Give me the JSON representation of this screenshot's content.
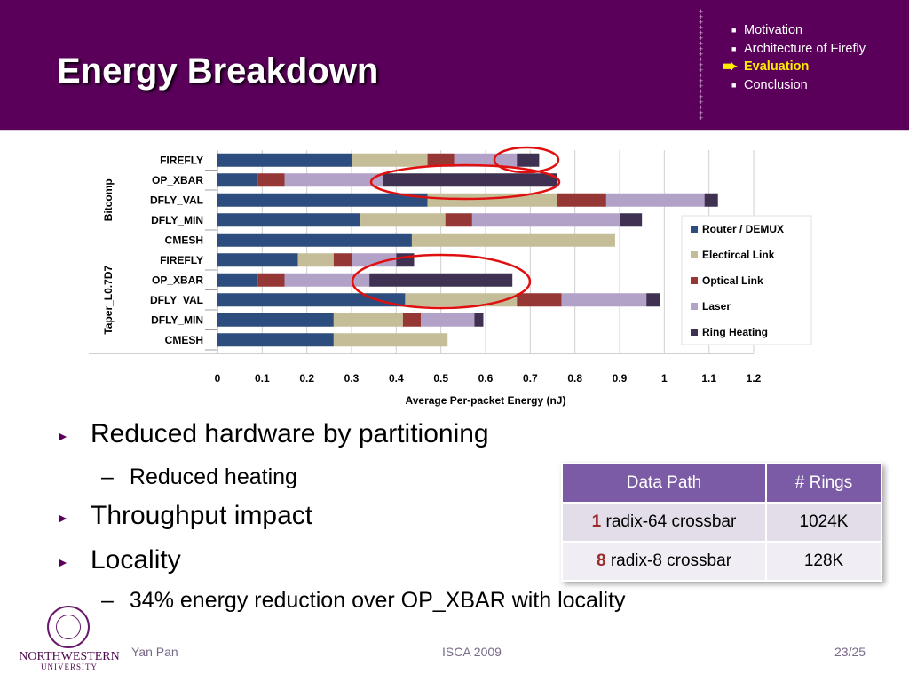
{
  "slide": {
    "title": "Energy Breakdown",
    "nav": [
      {
        "label": "Motivation",
        "active": false
      },
      {
        "label": "Architecture of Firefly",
        "active": false
      },
      {
        "label": "Evaluation",
        "active": true
      },
      {
        "label": "Conclusion",
        "active": false
      }
    ]
  },
  "chart_data": {
    "type": "bar",
    "orientation": "horizontal",
    "stacked": true,
    "xlabel": "Average Per-packet Energy (nJ)",
    "xlim": [
      0,
      1.2
    ],
    "xticks": [
      "0",
      "0.1",
      "0.2",
      "0.3",
      "0.4",
      "0.5",
      "0.6",
      "0.7",
      "0.8",
      "0.9",
      "1",
      "1.1",
      "1.2"
    ],
    "groups": [
      {
        "label": "Bitcomp",
        "categories": [
          "FIREFLY",
          "OP_XBAR",
          "DFLY_VAL",
          "DFLY_MIN",
          "CMESH"
        ]
      },
      {
        "label": "Taper_L0.7D7",
        "categories": [
          "FIREFLY",
          "OP_XBAR",
          "DFLY_VAL",
          "DFLY_MIN",
          "CMESH"
        ]
      }
    ],
    "series": [
      {
        "name": "Router / DEMUX",
        "color": "#2c4d7e",
        "values": [
          0.3,
          0.09,
          0.47,
          0.32,
          0.435,
          0.18,
          0.09,
          0.42,
          0.26,
          0.26
        ]
      },
      {
        "name": "Electircal Link",
        "color": "#c4bd97",
        "values": [
          0.17,
          0.0,
          0.29,
          0.19,
          0.455,
          0.08,
          0.0,
          0.25,
          0.155,
          0.255
        ]
      },
      {
        "name": "Optical Link",
        "color": "#953735",
        "values": [
          0.06,
          0.06,
          0.11,
          0.06,
          0.0,
          0.04,
          0.06,
          0.1,
          0.04,
          0.0
        ]
      },
      {
        "name": "Laser",
        "color": "#b3a2c7",
        "values": [
          0.14,
          0.22,
          0.22,
          0.33,
          0.0,
          0.1,
          0.19,
          0.19,
          0.12,
          0.0
        ]
      },
      {
        "name": "Ring Heating",
        "color": "#3f3151",
        "values": [
          0.05,
          0.39,
          0.03,
          0.05,
          0.0,
          0.04,
          0.32,
          0.03,
          0.02,
          0.0
        ]
      }
    ],
    "legend": "right",
    "annotations": "red ellipses around FIREFLY (Bitcomp), OP_XBAR (Bitcomp) and OP_XBAR (Taper_L0.7D7) heating segments"
  },
  "bullets": [
    {
      "level": 1,
      "text": "Reduced hardware by partitioning"
    },
    {
      "level": 2,
      "text": "Reduced heating"
    },
    {
      "level": 1,
      "text": "Throughput impact"
    },
    {
      "level": 1,
      "text": "Locality"
    },
    {
      "level": 2,
      "text": "34% energy reduction over OP_XBAR with locality"
    }
  ],
  "table": {
    "headers": [
      "Data Path",
      "# Rings"
    ],
    "rows": [
      {
        "num": "1",
        "path": "radix-64 crossbar",
        "rings": "1024K"
      },
      {
        "num": "8",
        "path": "radix-8 crossbar",
        "rings": "128K"
      }
    ]
  },
  "logo": {
    "name": "NORTHWESTERN",
    "sub": "UNIVERSITY"
  },
  "footer": {
    "author": "Yan Pan",
    "venue": "ISCA 2009",
    "page": "23/25"
  }
}
